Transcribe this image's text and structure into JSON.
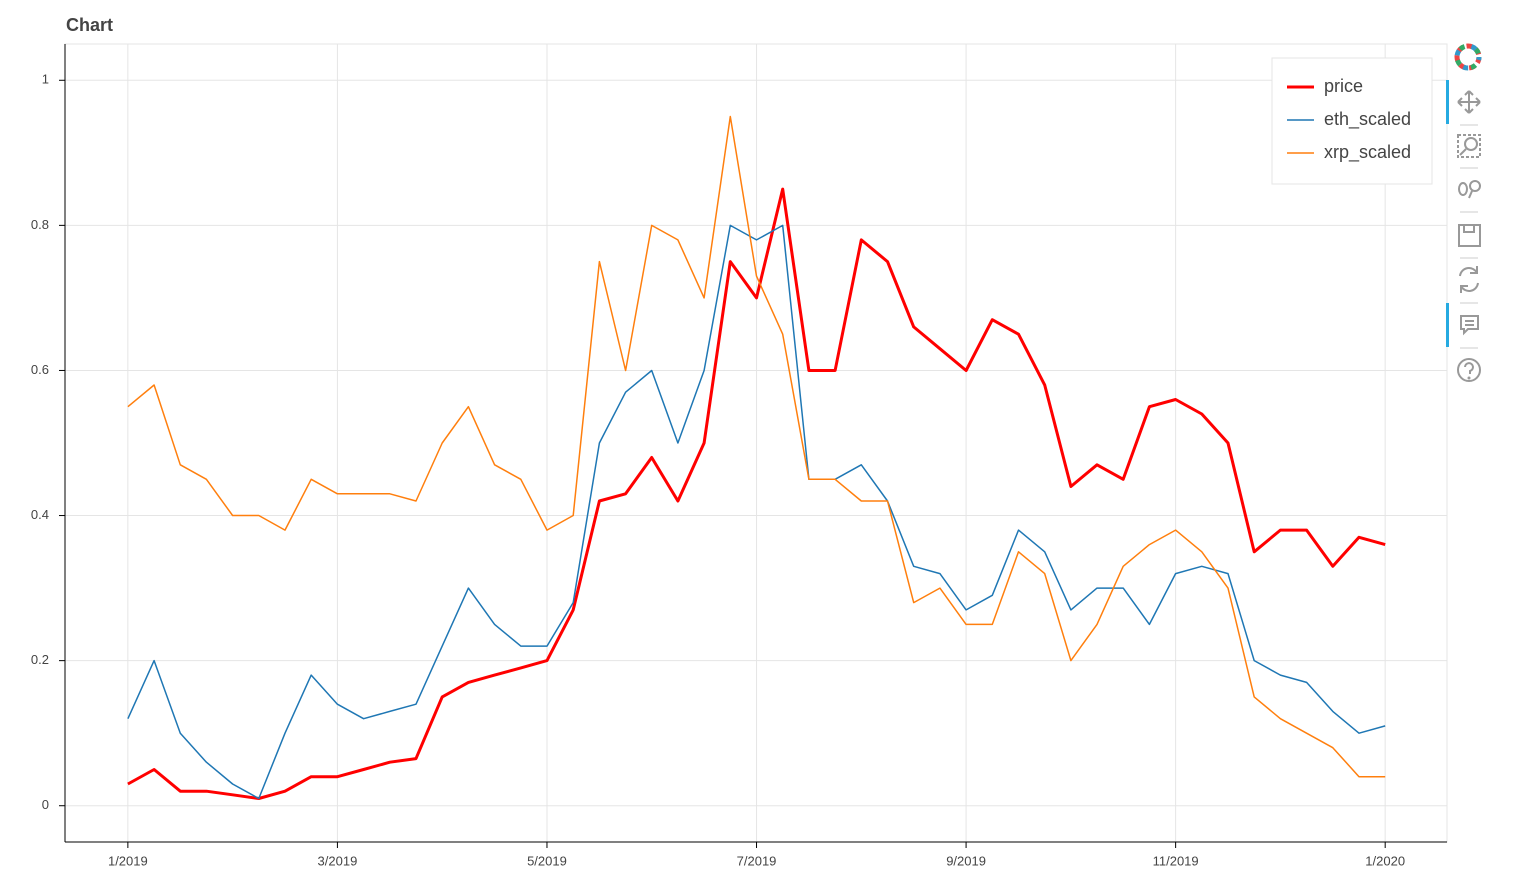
{
  "chart_data": {
    "type": "line",
    "title": "Chart",
    "x": [
      0,
      0.25,
      0.5,
      0.75,
      1,
      1.25,
      1.5,
      1.75,
      2,
      2.25,
      2.5,
      2.75,
      3,
      3.25,
      3.5,
      3.75,
      4,
      4.25,
      4.5,
      4.75,
      5,
      5.25,
      5.5,
      5.75,
      6,
      6.25,
      6.5,
      6.75,
      7,
      7.25,
      7.5,
      7.75,
      8,
      8.25,
      8.5,
      8.75,
      9,
      9.25,
      9.5,
      9.75,
      10,
      10.25,
      10.5,
      10.75,
      11,
      11.25,
      11.5,
      11.75,
      12
    ],
    "xlim": [
      -0.6,
      12.59
    ],
    "xticks": [
      {
        "value": 0,
        "label": "1/2019"
      },
      {
        "value": 2,
        "label": "3/2019"
      },
      {
        "value": 4,
        "label": "5/2019"
      },
      {
        "value": 6,
        "label": "7/2019"
      },
      {
        "value": 8,
        "label": "9/2019"
      },
      {
        "value": 10,
        "label": "11/2019"
      },
      {
        "value": 12,
        "label": "1/2020"
      }
    ],
    "ylim": [
      -0.05,
      1.05
    ],
    "yticks": [
      0,
      0.2,
      0.4,
      0.6,
      0.8,
      1
    ],
    "grid": true,
    "legend": "top-right",
    "series": [
      {
        "name": "price",
        "color": "#ff0000",
        "width": 3,
        "values": [
          0.03,
          0.05,
          0.02,
          0.02,
          0.015,
          0.01,
          0.02,
          0.04,
          0.04,
          0.05,
          0.06,
          0.065,
          0.15,
          0.17,
          0.18,
          0.19,
          0.2,
          0.27,
          0.42,
          0.43,
          0.48,
          0.42,
          0.5,
          0.75,
          0.7,
          0.85,
          0.6,
          0.6,
          0.78,
          0.75,
          0.66,
          0.63,
          0.6,
          0.67,
          0.65,
          0.58,
          0.44,
          0.47,
          0.45,
          0.55,
          0.56,
          0.54,
          0.5,
          0.35,
          0.38,
          0.38,
          0.33,
          0.37,
          0.36
        ]
      },
      {
        "name": "eth_scaled",
        "color": "#1f77b4",
        "width": 1.5,
        "values": [
          0.12,
          0.2,
          0.1,
          0.06,
          0.03,
          0.01,
          0.1,
          0.18,
          0.14,
          0.12,
          0.13,
          0.14,
          0.22,
          0.3,
          0.25,
          0.22,
          0.22,
          0.28,
          0.5,
          0.57,
          0.6,
          0.5,
          0.6,
          0.8,
          0.78,
          0.8,
          0.45,
          0.45,
          0.47,
          0.42,
          0.33,
          0.32,
          0.27,
          0.29,
          0.38,
          0.35,
          0.27,
          0.3,
          0.3,
          0.25,
          0.32,
          0.33,
          0.32,
          0.2,
          0.18,
          0.17,
          0.13,
          0.1,
          0.11
        ]
      },
      {
        "name": "xrp_scaled",
        "color": "#ff7f0e",
        "width": 1.5,
        "values": [
          0.55,
          0.58,
          0.47,
          0.45,
          0.4,
          0.4,
          0.38,
          0.45,
          0.43,
          0.43,
          0.43,
          0.42,
          0.5,
          0.55,
          0.47,
          0.45,
          0.38,
          0.4,
          0.75,
          0.6,
          0.8,
          0.78,
          0.7,
          0.95,
          0.73,
          0.65,
          0.45,
          0.45,
          0.42,
          0.42,
          0.28,
          0.3,
          0.25,
          0.25,
          0.35,
          0.32,
          0.2,
          0.25,
          0.33,
          0.36,
          0.38,
          0.35,
          0.3,
          0.15,
          0.12,
          0.1,
          0.08,
          0.04,
          0.04
        ]
      }
    ]
  }
}
